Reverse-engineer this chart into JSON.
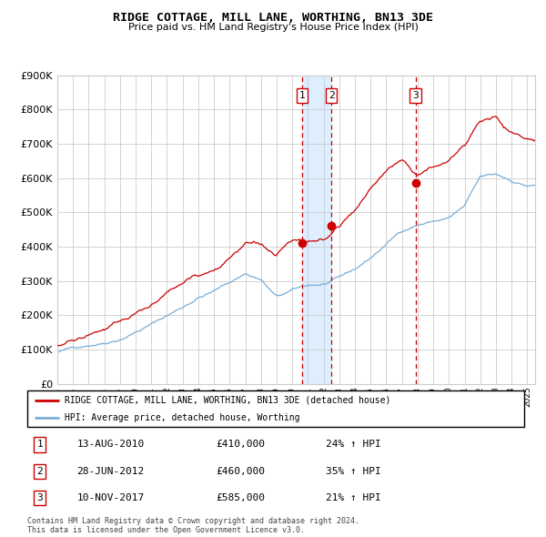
{
  "title": "RIDGE COTTAGE, MILL LANE, WORTHING, BN13 3DE",
  "subtitle": "Price paid vs. HM Land Registry's House Price Index (HPI)",
  "transactions": [
    {
      "num": 1,
      "date": "13-AUG-2010",
      "price": 410000,
      "hpi_pct": "24% ↑ HPI",
      "x_year": 2010.617
    },
    {
      "num": 2,
      "date": "28-JUN-2012",
      "price": 460000,
      "hpi_pct": "35% ↑ HPI",
      "x_year": 2012.492
    },
    {
      "num": 3,
      "date": "10-NOV-2017",
      "price": 585000,
      "hpi_pct": "21% ↑ HPI",
      "x_year": 2017.861
    }
  ],
  "legend_house_label": "RIDGE COTTAGE, MILL LANE, WORTHING, BN13 3DE (detached house)",
  "legend_hpi_label": "HPI: Average price, detached house, Worthing",
  "footer": "Contains HM Land Registry data © Crown copyright and database right 2024.\nThis data is licensed under the Open Government Licence v3.0.",
  "xmin": 1995,
  "xmax": 2025.5,
  "ymin": 0,
  "ymax": 900000,
  "house_color": "#cc0000",
  "hpi_color": "#7aadd4",
  "shaded_region_color": "#ddeeff",
  "dashed_line_color": "#cc0000",
  "background_color": "#ffffff",
  "grid_color": "#cccccc",
  "hpi_key_years": [
    1995,
    1996,
    1997,
    1998,
    1999,
    2000,
    2001,
    2002,
    2003,
    2004,
    2005,
    2006,
    2007,
    2008,
    2009,
    2010,
    2011,
    2012,
    2013,
    2014,
    2015,
    2016,
    2017,
    2018,
    2019,
    2020,
    2021,
    2022,
    2023,
    2024,
    2025
  ],
  "hpi_key_vals": [
    92000,
    103000,
    115000,
    125000,
    140000,
    163000,
    185000,
    210000,
    235000,
    265000,
    283000,
    308000,
    335000,
    318000,
    265000,
    282000,
    295000,
    298000,
    312000,
    335000,
    368000,
    408000,
    448000,
    468000,
    478000,
    488000,
    520000,
    600000,
    605000,
    588000,
    575000
  ],
  "house_key_years": [
    1995,
    1996,
    1997,
    1998,
    1999,
    2000,
    2001,
    2002,
    2003,
    2004,
    2005,
    2006,
    2007,
    2008,
    2009,
    2010,
    2011,
    2012,
    2013,
    2014,
    2015,
    2016,
    2017,
    2018,
    2019,
    2020,
    2021,
    2022,
    2023,
    2024,
    2025
  ],
  "house_key_vals": [
    112000,
    125000,
    140000,
    152000,
    168000,
    195000,
    222000,
    255000,
    285000,
    315000,
    335000,
    368000,
    418000,
    410000,
    370000,
    405000,
    400000,
    405000,
    440000,
    495000,
    548000,
    598000,
    638000,
    595000,
    625000,
    648000,
    692000,
    768000,
    775000,
    725000,
    705000
  ],
  "noise_seed": 42,
  "noise_scale_hpi": 1200,
  "noise_scale_house": 1800
}
